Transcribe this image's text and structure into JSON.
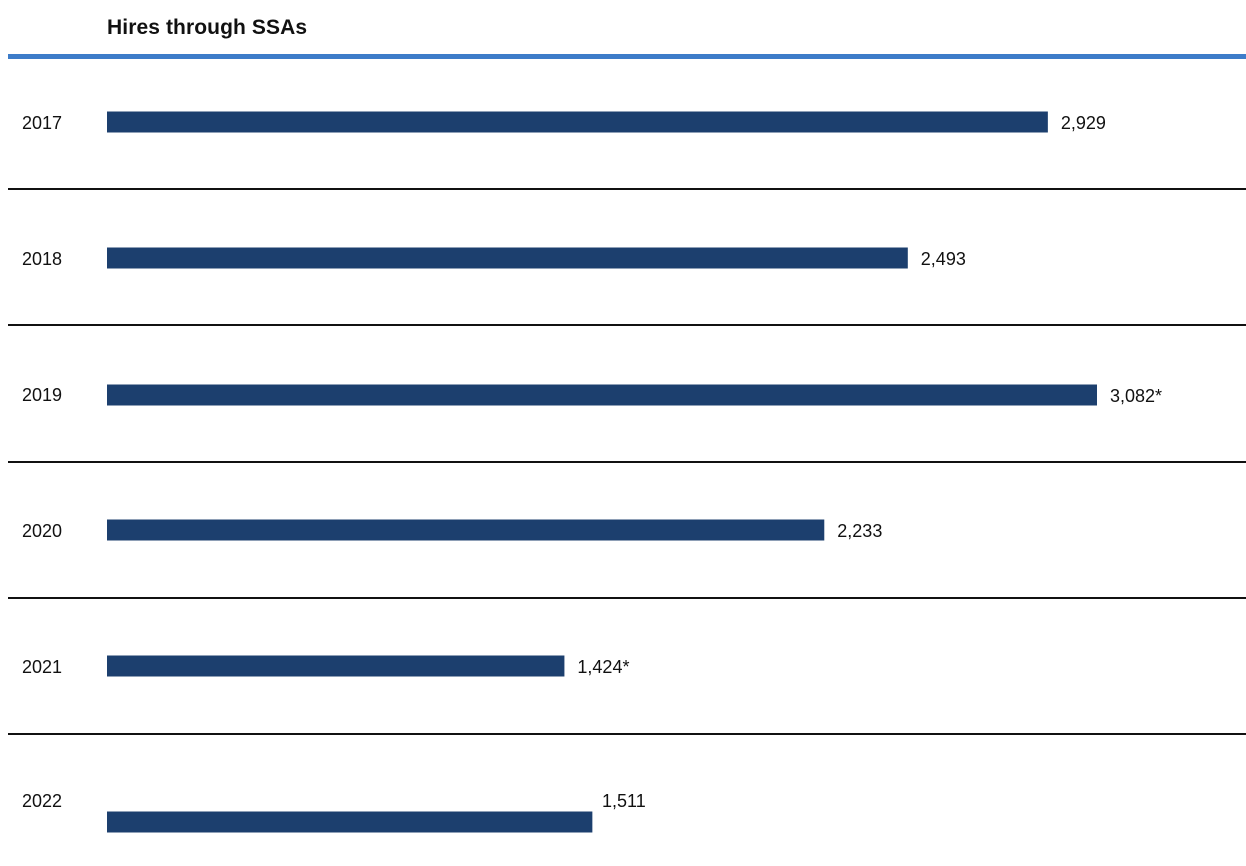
{
  "chart_data": {
    "type": "bar",
    "orientation": "horizontal",
    "title": "Hires through SSAs",
    "categories": [
      "2017",
      "2018",
      "2019",
      "2020",
      "2021",
      "2022"
    ],
    "values": [
      2929,
      2493,
      3082,
      2233,
      1424,
      1511
    ],
    "data_labels": [
      "2,929",
      "2,493",
      "3,082*",
      "2,233",
      "1,424*",
      "1,511"
    ],
    "xlabel": "",
    "ylabel": "",
    "xlim": [
      0,
      3200
    ],
    "grid": false,
    "legend": "none"
  },
  "colors": {
    "bar": "#1c3f6e",
    "title_rule": "#3d7cc9",
    "divider": "#111111"
  }
}
